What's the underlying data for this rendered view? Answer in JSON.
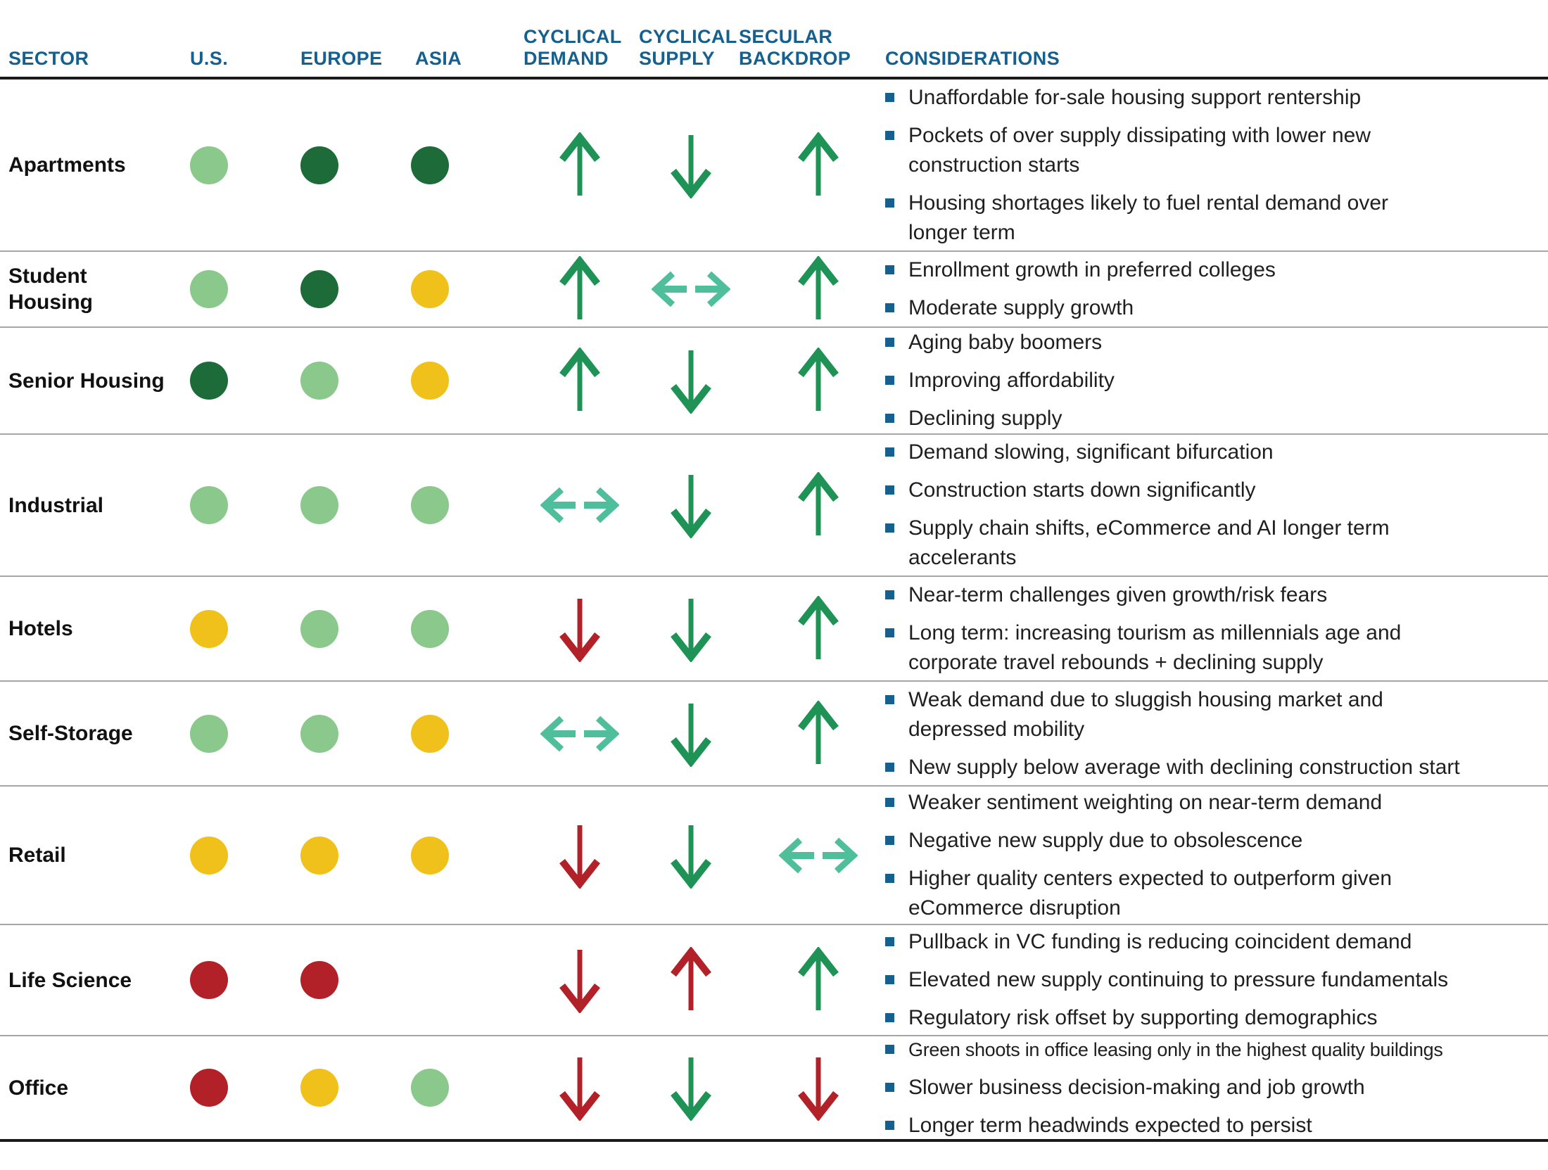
{
  "palette": {
    "header_blue": "#15608F",
    "bullet_blue": "#15608F",
    "light_green": "#8AC88B",
    "dark_green": "#1D6B38",
    "yellow": "#F0C11B",
    "red": "#B22128",
    "arrow_green": "#1E9355",
    "arrow_teal": "#4FBE9B",
    "arrow_red": "#B22128",
    "rule_dark": "#1A1A1A",
    "rule_gray": "#A6A6A6"
  },
  "header": {
    "columns": [
      {
        "id": "sector",
        "label": "SECTOR"
      },
      {
        "id": "us",
        "label": "U.S."
      },
      {
        "id": "europe",
        "label": "EUROPE"
      },
      {
        "id": "asia",
        "label": "ASIA"
      },
      {
        "id": "demand",
        "label": "CYCLICAL\nDEMAND"
      },
      {
        "id": "supply",
        "label": "CYCLICAL\nSUPPLY"
      },
      {
        "id": "backdrop",
        "label": "SECULAR\nBACKDROP"
      },
      {
        "id": "considerations",
        "label": "CONSIDERATIONS"
      }
    ]
  },
  "legend_semantics": {
    "dot_colors": {
      "light_green": "favorable",
      "dark_green": "most favorable",
      "yellow": "neutral",
      "red": "unfavorable"
    },
    "arrow_dirs": {
      "up": "increasing",
      "down": "decreasing",
      "leftright": "flat"
    }
  },
  "rows": [
    {
      "sector": "Apartments",
      "dots": {
        "us": "light_green",
        "europe": "dark_green",
        "asia": "dark_green"
      },
      "arrows": {
        "demand": {
          "dir": "up",
          "color": "arrow_green"
        },
        "supply": {
          "dir": "down",
          "color": "arrow_green"
        },
        "backdrop": {
          "dir": "up",
          "color": "arrow_green"
        }
      },
      "considerations": [
        {
          "text": "Unaffordable for-sale housing support rentership"
        },
        {
          "text": "Pockets of over supply dissipating with lower new\nconstruction starts"
        },
        {
          "text": "Housing shortages likely to fuel rental demand over\nlonger term"
        }
      ]
    },
    {
      "sector": "Student\nHousing",
      "dots": {
        "us": "light_green",
        "europe": "dark_green",
        "asia": "yellow"
      },
      "arrows": {
        "demand": {
          "dir": "up",
          "color": "arrow_green"
        },
        "supply": {
          "dir": "leftright",
          "color": "arrow_teal"
        },
        "backdrop": {
          "dir": "up",
          "color": "arrow_green"
        }
      },
      "considerations": [
        {
          "text": "Enrollment growth in preferred colleges"
        },
        {
          "text": "Moderate supply growth"
        }
      ]
    },
    {
      "sector": "Senior Housing",
      "dots": {
        "us": "dark_green",
        "europe": "light_green",
        "asia": "yellow"
      },
      "arrows": {
        "demand": {
          "dir": "up",
          "color": "arrow_green"
        },
        "supply": {
          "dir": "down",
          "color": "arrow_green"
        },
        "backdrop": {
          "dir": "up",
          "color": "arrow_green"
        }
      },
      "considerations": [
        {
          "text": "Aging baby boomers"
        },
        {
          "text": "Improving affordability"
        },
        {
          "text": "Declining supply"
        }
      ]
    },
    {
      "sector": "Industrial",
      "dots": {
        "us": "light_green",
        "europe": "light_green",
        "asia": "light_green"
      },
      "arrows": {
        "demand": {
          "dir": "leftright",
          "color": "arrow_teal"
        },
        "supply": {
          "dir": "down",
          "color": "arrow_green"
        },
        "backdrop": {
          "dir": "up",
          "color": "arrow_green"
        }
      },
      "considerations": [
        {
          "text": "Demand slowing, significant bifurcation"
        },
        {
          "text": "Construction starts down significantly"
        },
        {
          "text": "Supply chain shifts, eCommerce and AI longer term\naccelerants"
        }
      ]
    },
    {
      "sector": "Hotels",
      "dots": {
        "us": "yellow",
        "europe": "light_green",
        "asia": "light_green"
      },
      "arrows": {
        "demand": {
          "dir": "down",
          "color": "arrow_red"
        },
        "supply": {
          "dir": "down",
          "color": "arrow_green"
        },
        "backdrop": {
          "dir": "up",
          "color": "arrow_green"
        }
      },
      "considerations": [
        {
          "text": "Near-term challenges given growth/risk fears"
        },
        {
          "text": "Long term: increasing tourism as millennials age and\ncorporate travel rebounds + declining supply"
        }
      ]
    },
    {
      "sector": "Self-Storage",
      "dots": {
        "us": "light_green",
        "europe": "light_green",
        "asia": "yellow"
      },
      "arrows": {
        "demand": {
          "dir": "leftright",
          "color": "arrow_teal"
        },
        "supply": {
          "dir": "down",
          "color": "arrow_green"
        },
        "backdrop": {
          "dir": "up",
          "color": "arrow_green"
        }
      },
      "considerations": [
        {
          "text": "Weak demand due to sluggish housing market and\ndepressed mobility"
        },
        {
          "text": "New supply below average with declining construction start"
        }
      ]
    },
    {
      "sector": "Retail",
      "dots": {
        "us": "yellow",
        "europe": "yellow",
        "asia": "yellow"
      },
      "arrows": {
        "demand": {
          "dir": "down",
          "color": "arrow_red"
        },
        "supply": {
          "dir": "down",
          "color": "arrow_green"
        },
        "backdrop": {
          "dir": "leftright",
          "color": "arrow_teal"
        }
      },
      "considerations": [
        {
          "text": "Weaker sentiment weighting on near-term demand"
        },
        {
          "text": "Negative new supply due to obsolescence"
        },
        {
          "text": "Higher quality centers expected to outperform given\neCommerce disruption"
        }
      ]
    },
    {
      "sector": "Life Science",
      "dots": {
        "us": "red",
        "europe": "red",
        "asia": "none"
      },
      "arrows": {
        "demand": {
          "dir": "down",
          "color": "arrow_red"
        },
        "supply": {
          "dir": "up",
          "color": "arrow_red"
        },
        "backdrop": {
          "dir": "up",
          "color": "arrow_green"
        }
      },
      "considerations": [
        {
          "text": "Pullback in VC funding is reducing coincident demand"
        },
        {
          "text": "Elevated new supply continuing to pressure fundamentals"
        },
        {
          "text": "Regulatory risk offset by supporting demographics"
        }
      ]
    },
    {
      "sector": "Office",
      "dots": {
        "us": "red",
        "europe": "yellow",
        "asia": "light_green"
      },
      "arrows": {
        "demand": {
          "dir": "down",
          "color": "arrow_red"
        },
        "supply": {
          "dir": "down",
          "color": "arrow_green"
        },
        "backdrop": {
          "dir": "down",
          "color": "arrow_red"
        }
      },
      "considerations": [
        {
          "text": "Green shoots in office leasing only in the highest quality buildings",
          "small": true
        },
        {
          "text": "Slower business decision-making and job growth"
        },
        {
          "text": "Longer term headwinds expected to persist"
        }
      ]
    }
  ]
}
